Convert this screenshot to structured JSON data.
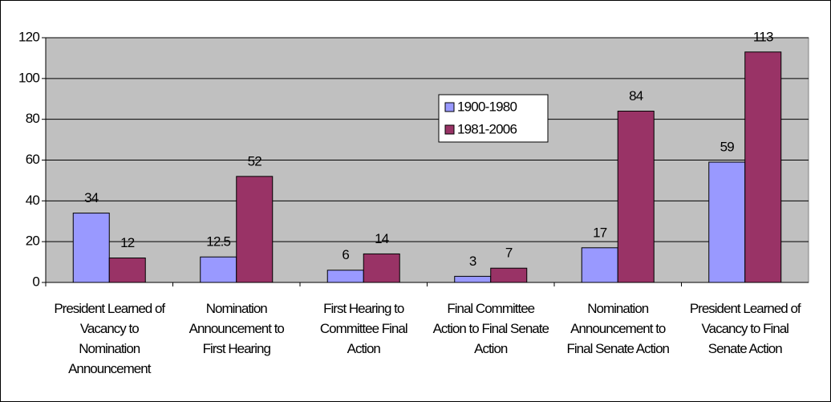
{
  "chart_data": {
    "type": "bar",
    "categories": [
      "President Learned of Vacancy to Nomination Announcement",
      "Nomination Announcement to First Hearing",
      "First Hearing to Committee Final Action",
      "Final Committee Action to Final Senate Action",
      "Nomination Announcement to Final Senate Action",
      "President Learned of Vacancy to Final Senate Action"
    ],
    "series": [
      {
        "name": "1900-1980",
        "color": "#9999ff",
        "values": [
          34,
          12.5,
          6,
          3,
          17,
          59
        ]
      },
      {
        "name": "1981-2006",
        "color": "#993366",
        "values": [
          12,
          52,
          14,
          7,
          84,
          113
        ]
      }
    ],
    "ylim": [
      0,
      120
    ],
    "yticks": [
      0,
      20,
      40,
      60,
      80,
      100,
      120
    ],
    "grid": true,
    "legend": "top-center"
  }
}
